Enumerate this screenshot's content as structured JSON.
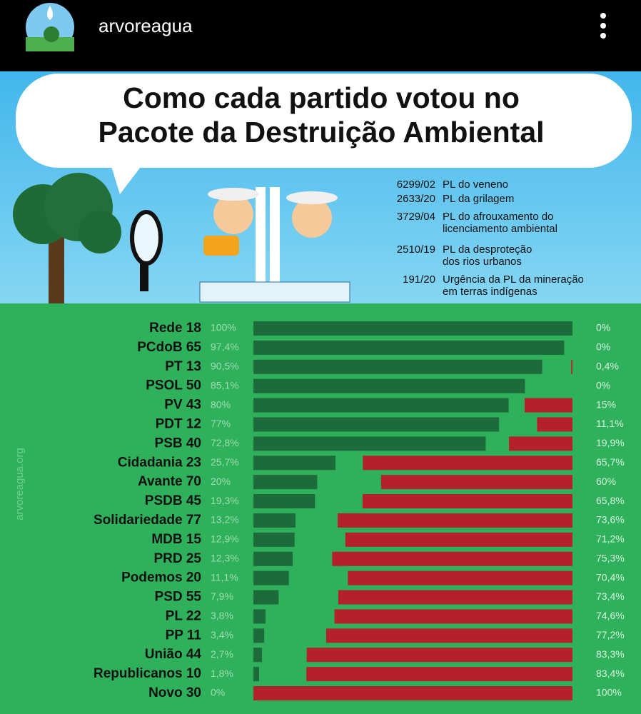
{
  "header": {
    "username": "arvoreagua"
  },
  "title": [
    "Como cada partido votou no",
    "Pacote da Destruição Ambiental"
  ],
  "bills": [
    {
      "code": "6299/02",
      "text": [
        "PL do veneno"
      ]
    },
    {
      "code": "2633/20",
      "text": [
        "PL da grilagem"
      ]
    },
    {
      "code": "3729/04",
      "text": [
        "PL do afrouxamento do",
        "licenciamento ambiental"
      ]
    },
    {
      "code": "2510/19",
      "text": [
        "PL da desproteção",
        "dos rios urbanos"
      ]
    },
    {
      "code": "191/20",
      "text": [
        "Urgência da PL da mineração",
        "em terras indígenas"
      ]
    }
  ],
  "watermark": "arvoreagua.org",
  "chart_data": {
    "type": "bar",
    "categories": [
      "Rede 18",
      "PCdoB 65",
      "PT 13",
      "PSOL 50",
      "PV 43",
      "PDT 12",
      "PSB 40",
      "Cidadania 23",
      "Avante 70",
      "PSDB 45",
      "Solidariedade 77",
      "MDB 15",
      "PRD 25",
      "Podemos 20",
      "PSD 55",
      "PL 22",
      "PP 11",
      "União 44",
      "Republicanos 10",
      "Novo 30"
    ],
    "xlim": [
      0,
      100
    ],
    "series": [
      {
        "color": "#1d6a3b",
        "values": [
          100,
          97.4,
          90.5,
          85.1,
          80,
          77,
          72.8,
          25.7,
          20,
          19.3,
          13.2,
          12.9,
          12.3,
          11.1,
          7.9,
          3.8,
          3.4,
          2.7,
          1.8,
          0
        ],
        "value_labels": [
          "100%",
          "97,4%",
          "90,5%",
          "85,1%",
          "80%",
          "77%",
          "72,8%",
          "25,7%",
          "20%",
          "19,3%",
          "13,2%",
          "12,9%",
          "12,3%",
          "11,1%",
          "7,9%",
          "3,8%",
          "3,4%",
          "2,7%",
          "1,8%",
          "0%"
        ]
      },
      {
        "color": "#b5202d",
        "values": [
          0,
          0,
          0.4,
          0,
          15,
          11.1,
          19.9,
          65.7,
          60,
          65.8,
          73.6,
          71.2,
          75.3,
          70.4,
          73.4,
          74.6,
          77.2,
          83.3,
          83.4,
          100
        ],
        "value_labels": [
          "0%",
          "0%",
          "0,4%",
          "0%",
          "15%",
          "11,1%",
          "19,9%",
          "65,7%",
          "60%",
          "65,8%",
          "73,6%",
          "71,2%",
          "75,3%",
          "70,4%",
          "73,4%",
          "74,6%",
          "77,2%",
          "83,3%",
          "83,4%",
          "100%"
        ]
      }
    ]
  }
}
